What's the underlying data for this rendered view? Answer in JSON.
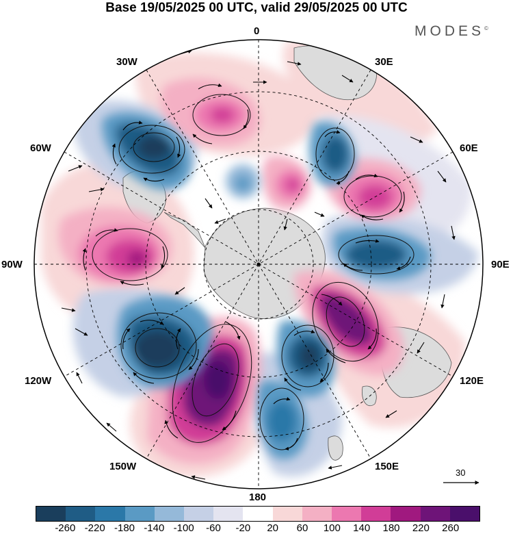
{
  "title": "Base 19/05/2025 00 UTC, valid 29/05/2025 00 UTC",
  "brand": "MODES",
  "brand_mark": "©",
  "longitude_labels": {
    "top": "0",
    "e30": "30E",
    "e60": "60E",
    "e90": "90E",
    "e120": "120E",
    "e150": "150E",
    "bottom": "180",
    "w150": "150W",
    "w120": "120W",
    "w90": "90W",
    "w60": "60W",
    "w30": "30W"
  },
  "vector_scale_label": "30",
  "colorbar": {
    "ticks": [
      "-260",
      "-220",
      "-180",
      "-140",
      "-100",
      "-60",
      "-20",
      "20",
      "60",
      "100",
      "140",
      "180",
      "220",
      "260"
    ],
    "colors": [
      "#1a3e5c",
      "#1f5c85",
      "#2b78a8",
      "#5a9ac4",
      "#95b9d9",
      "#c5d0e6",
      "#e4e4f0",
      "#ffffff",
      "#f8d8d8",
      "#f4b0c4",
      "#ec78b0",
      "#d13d97",
      "#a0197f",
      "#6e1478",
      "#4a0f6b"
    ]
  },
  "map": {
    "projection": "south polar stereographic",
    "colors": {
      "land": "#dcdcdc",
      "pos": [
        "#f8d8d8",
        "#f4b0c4",
        "#ec78b0",
        "#d13d97",
        "#a0197f",
        "#6e1478"
      ],
      "neg": [
        "#e4e4f0",
        "#c5d0e6",
        "#95b9d9",
        "#5a9ac4",
        "#2b78a8",
        "#1f5c85",
        "#1a3e5c"
      ]
    }
  }
}
